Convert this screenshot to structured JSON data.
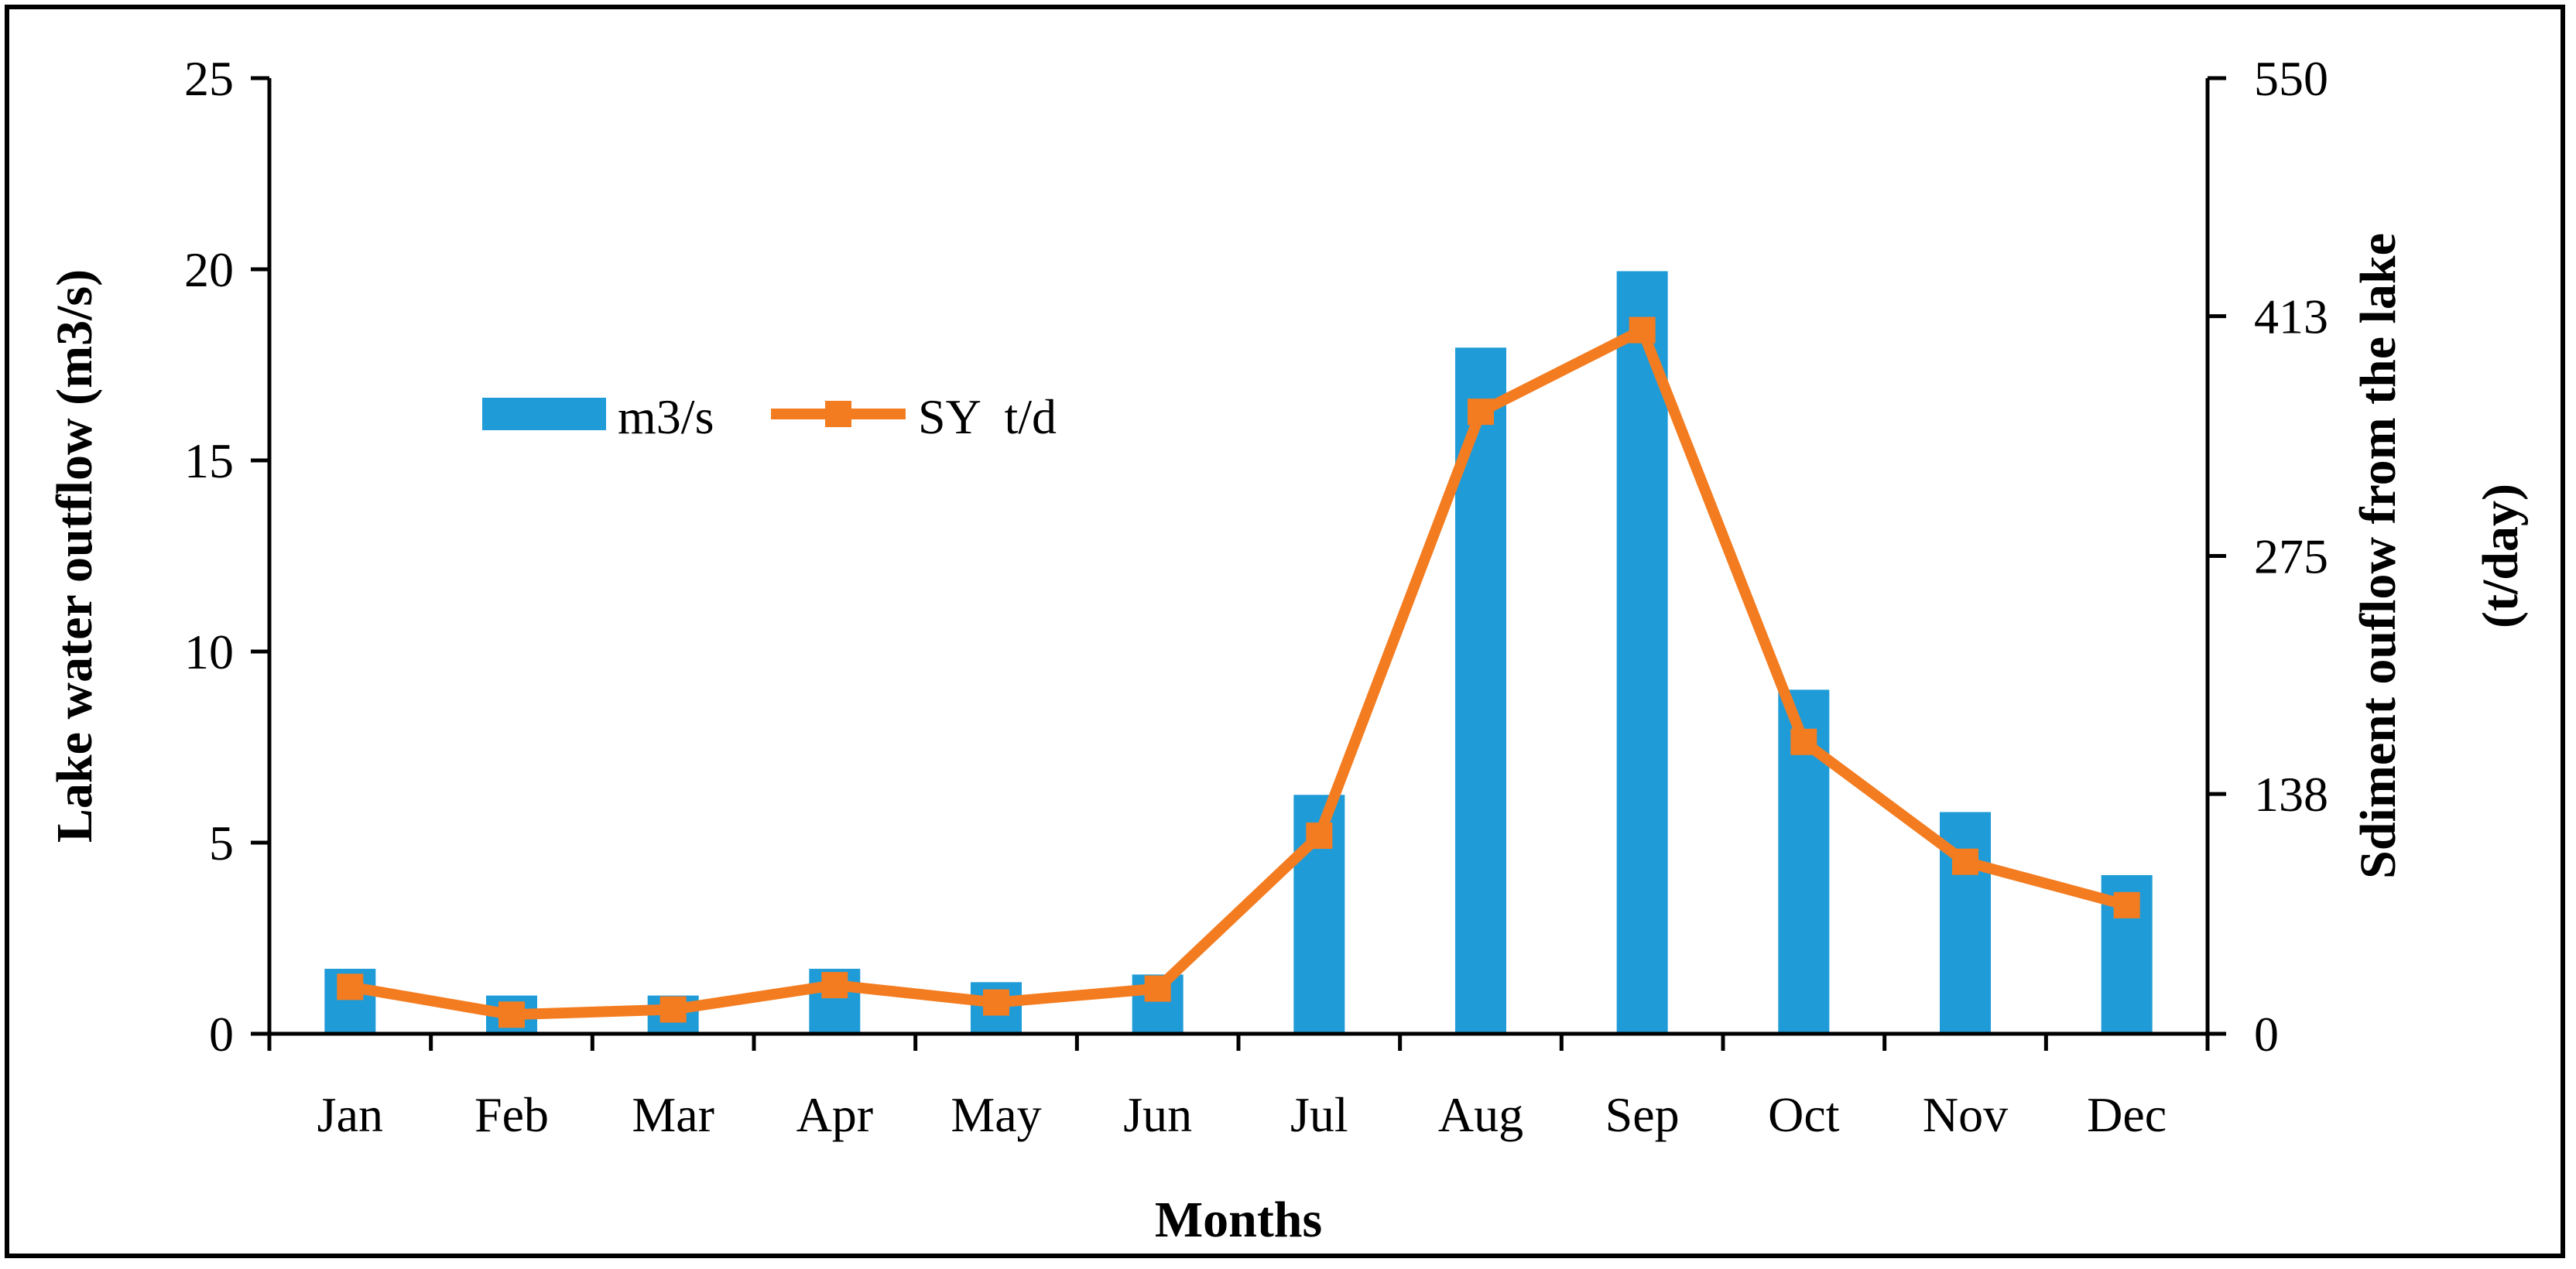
{
  "chart_data": {
    "type": "bar+line",
    "categories": [
      "Jan",
      "Feb",
      "Mar",
      "Apr",
      "May",
      "Jun",
      "Jul",
      "Aug",
      "Sep",
      "Oct",
      "Nov",
      "Dec"
    ],
    "series": [
      {
        "name": "m3/s",
        "type": "bar",
        "axis": "left",
        "color": "#1f9bd8",
        "values": [
          1.7,
          1.0,
          1.0,
          1.7,
          1.35,
          1.55,
          6.25,
          17.95,
          19.95,
          9.0,
          5.8,
          4.15
        ]
      },
      {
        "name": "SY  t/d",
        "type": "line",
        "marker": "square",
        "axis": "right",
        "color": "#f47c20",
        "values": [
          27,
          11,
          14,
          28,
          18,
          26,
          114,
          358,
          405,
          168,
          99,
          74
        ]
      }
    ],
    "xlabel": "Months",
    "ylabel_left": "Lake water outflow (m3/s)",
    "ylabel_right_line1": "Sdiment ouflow from the  lake",
    "ylabel_right_line2": "(t/day)",
    "ylim_left": [
      0,
      25
    ],
    "yticks_left": [
      "0",
      "5",
      "10",
      "15",
      "20",
      "25"
    ],
    "ylim_right": [
      0,
      550
    ],
    "yticks_right": [
      "0",
      "138",
      "275",
      "413",
      "550"
    ],
    "legend": [
      "m3/s",
      "SY  t/d"
    ],
    "legend_position": "upper-left",
    "grid": false
  }
}
